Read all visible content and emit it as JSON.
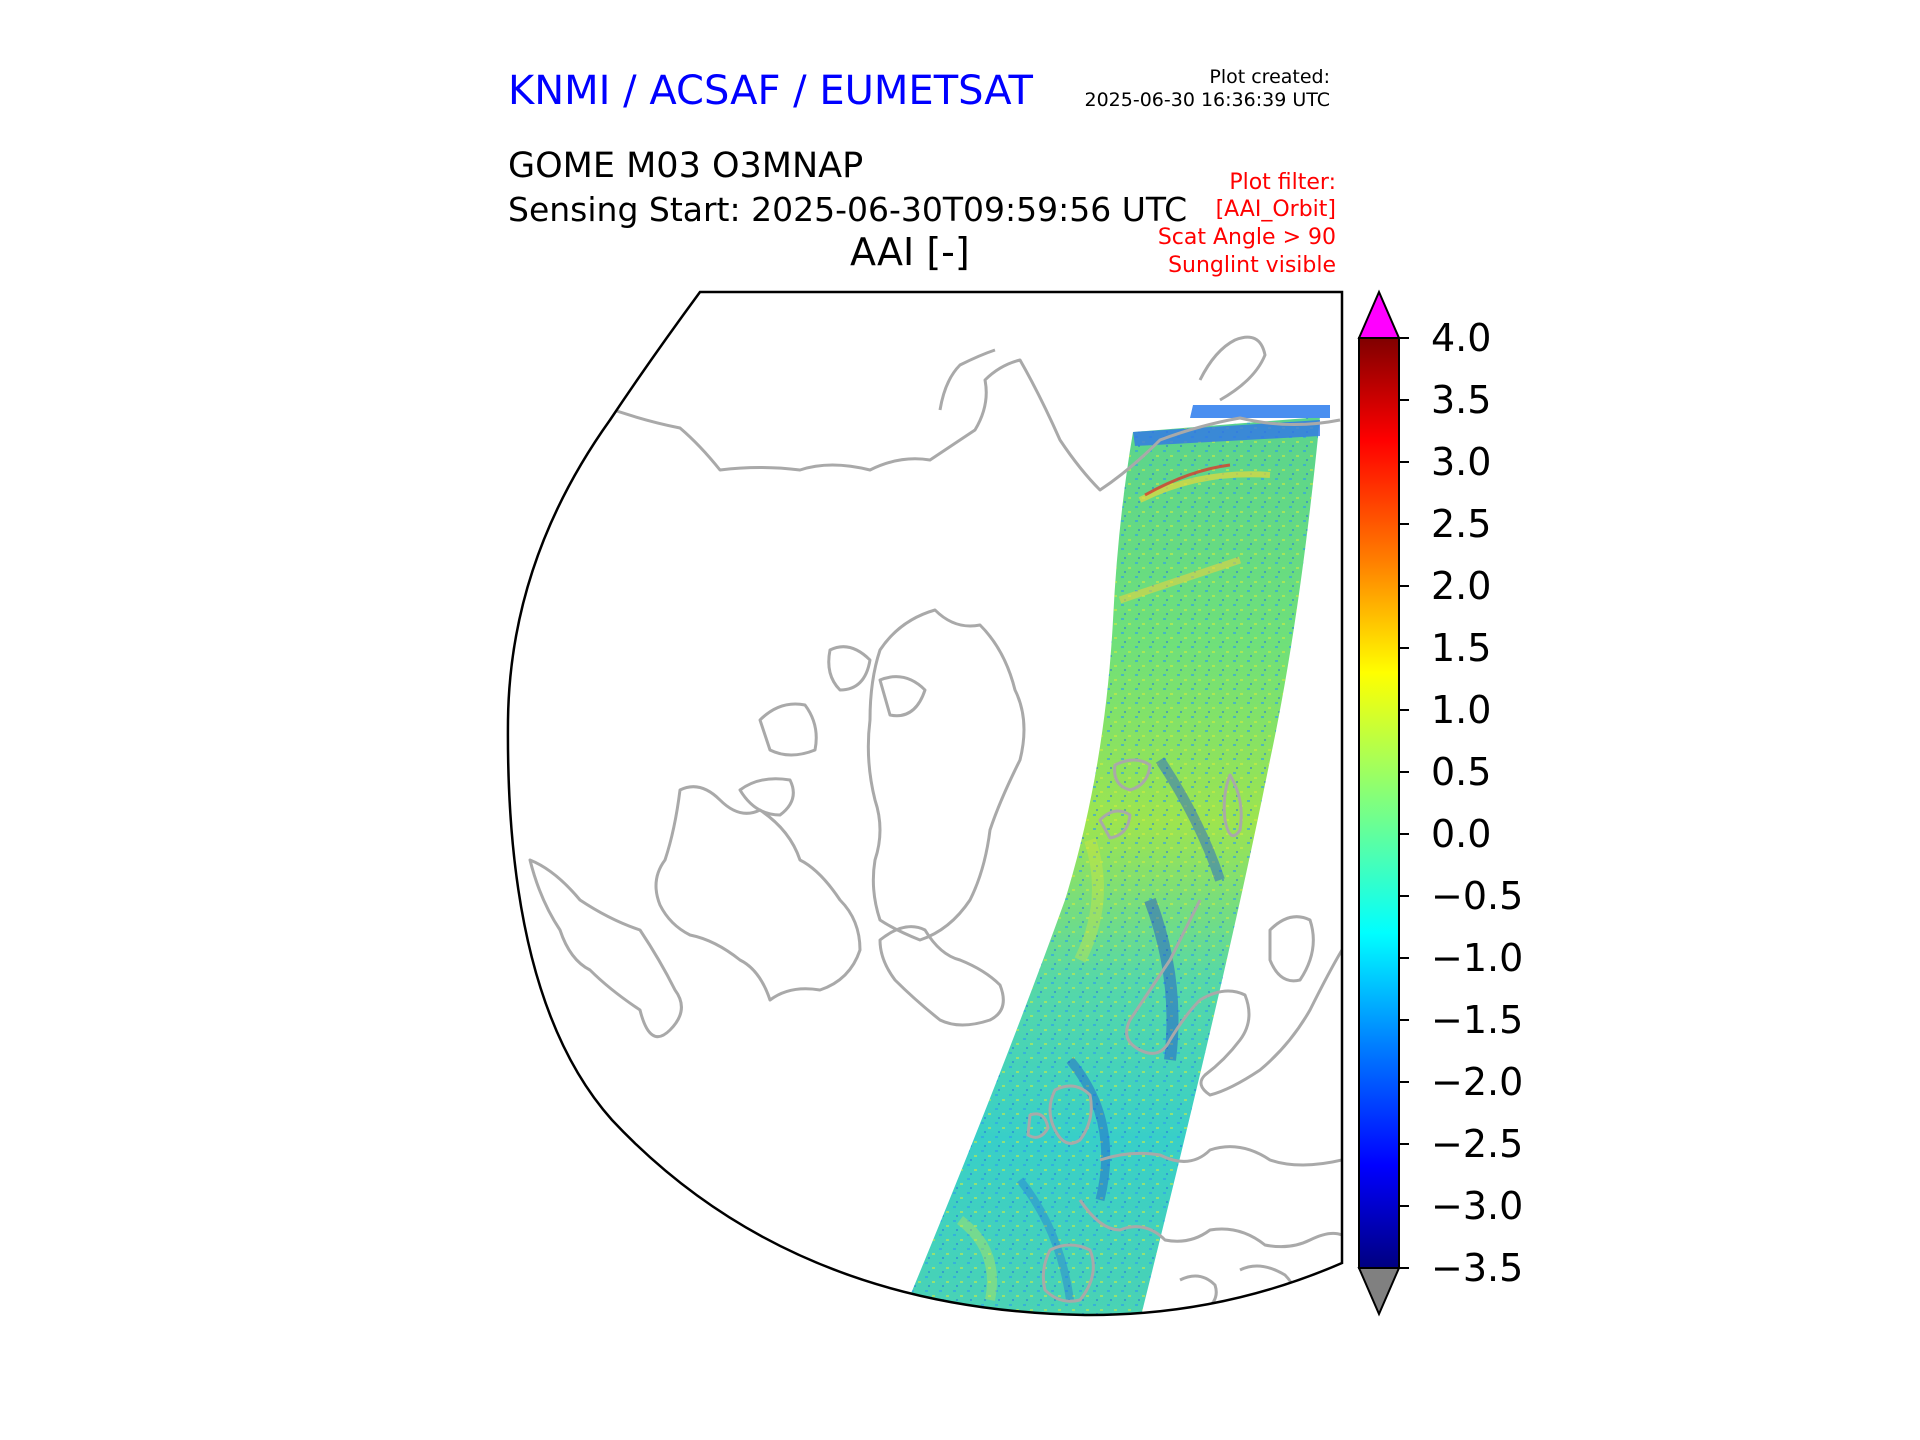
{
  "header": {
    "organization": "KNMI / ACSAF / EUMETSAT",
    "plot_created_label": "Plot created:",
    "plot_created_time": "2025-06-30 16:36:39 UTC",
    "product": "GOME M03 O3MNAP",
    "sensing_start": "Sensing Start: 2025-06-30T09:59:56 UTC",
    "variable": "AAI [-]",
    "filters": [
      "Plot filter:",
      "[AAI_Orbit]",
      "Scat Angle > 90",
      "Sunglint visible"
    ]
  },
  "map": {
    "projection": "north-polar",
    "coastline_color": "#a9a9a9",
    "swath": "single GOME orbit over North Atlantic, Scandinavia, Europe and Africa"
  },
  "colorbar": {
    "colormap": "jet",
    "min": -3.5,
    "max": 4.0,
    "extend_low_color": "#808080",
    "extend_high_color": "#ff00ff",
    "ticks": [
      "4.0",
      "3.5",
      "3.0",
      "2.5",
      "2.0",
      "1.5",
      "1.0",
      "0.5",
      "0.0",
      "−0.5",
      "−1.0",
      "−1.5",
      "−2.0",
      "−2.5",
      "−3.0",
      "−3.5"
    ],
    "tick_values": [
      4.0,
      3.5,
      3.0,
      2.5,
      2.0,
      1.5,
      1.0,
      0.5,
      0.0,
      -0.5,
      -1.0,
      -1.5,
      -2.0,
      -2.5,
      -3.0,
      -3.5
    ]
  }
}
